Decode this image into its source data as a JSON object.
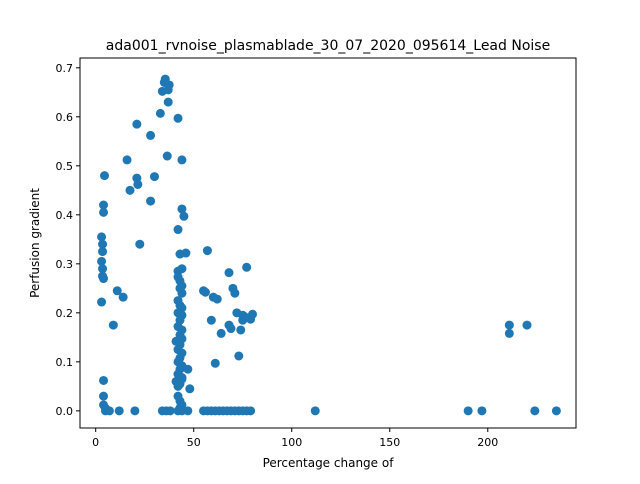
{
  "chart_data": {
    "type": "scatter",
    "title": "ada001_rvnoise_plasmablade_30_07_2020_095614_Lead Noise",
    "xlabel": "Percentage change of",
    "ylabel": "Perfusion gradient",
    "xlim": [
      -8,
      245
    ],
    "ylim": [
      -0.035,
      0.72
    ],
    "xticks": [
      0,
      50,
      100,
      150,
      200
    ],
    "xtick_labels": [
      "0",
      "50",
      "100",
      "150",
      "200"
    ],
    "yticks": [
      0.0,
      0.1,
      0.2,
      0.3,
      0.4,
      0.5,
      0.6,
      0.7
    ],
    "ytick_labels": [
      "0.0",
      "0.1",
      "0.2",
      "0.3",
      "0.4",
      "0.5",
      "0.6",
      "0.7"
    ],
    "grid": false,
    "marker_color": "#1f77b4",
    "series": [
      {
        "points": [
          [
            3,
            0.305
          ],
          [
            3,
            0.355
          ],
          [
            3.5,
            0.34
          ],
          [
            3.5,
            0.325
          ],
          [
            4,
            0.42
          ],
          [
            4,
            0.405
          ],
          [
            4.5,
            0.48
          ],
          [
            3.5,
            0.29
          ],
          [
            3.5,
            0.275
          ],
          [
            4,
            0.27
          ],
          [
            3,
            0.222
          ],
          [
            4,
            0.062
          ],
          [
            4,
            0.03
          ],
          [
            4,
            0.012
          ],
          [
            5,
            0.005
          ],
          [
            5,
            0.0
          ],
          [
            7,
            0.0
          ],
          [
            9,
            0.175
          ],
          [
            11,
            0.245
          ],
          [
            12,
            0.0
          ],
          [
            14,
            0.232
          ],
          [
            16,
            0.512
          ],
          [
            17.5,
            0.45
          ],
          [
            20,
            0.0
          ],
          [
            21,
            0.585
          ],
          [
            21,
            0.475
          ],
          [
            21.5,
            0.462
          ],
          [
            22.5,
            0.34
          ],
          [
            28,
            0.562
          ],
          [
            28,
            0.428
          ],
          [
            30,
            0.478
          ],
          [
            33,
            0.607
          ],
          [
            34,
            0.652
          ],
          [
            35,
            0.67
          ],
          [
            35.5,
            0.677
          ],
          [
            37,
            0.63
          ],
          [
            37,
            0.655
          ],
          [
            37.5,
            0.665
          ],
          [
            36.5,
            0.52
          ],
          [
            34,
            0.0
          ],
          [
            36,
            0.0
          ],
          [
            38,
            0.0
          ],
          [
            42,
            0.597
          ],
          [
            42,
            0.37
          ],
          [
            44,
            0.512
          ],
          [
            44,
            0.412
          ],
          [
            45,
            0.397
          ],
          [
            43,
            0.32
          ],
          [
            46,
            0.322
          ],
          [
            42,
            0.285
          ],
          [
            42,
            0.273
          ],
          [
            43,
            0.265
          ],
          [
            44,
            0.29
          ],
          [
            44,
            0.255
          ],
          [
            43,
            0.25
          ],
          [
            44,
            0.24
          ],
          [
            42,
            0.225
          ],
          [
            43,
            0.215
          ],
          [
            44,
            0.21
          ],
          [
            42,
            0.2
          ],
          [
            44,
            0.195
          ],
          [
            43,
            0.185
          ],
          [
            42,
            0.172
          ],
          [
            44,
            0.165
          ],
          [
            43,
            0.155
          ],
          [
            44,
            0.147
          ],
          [
            41,
            0.142
          ],
          [
            43,
            0.135
          ],
          [
            42,
            0.125
          ],
          [
            44,
            0.118
          ],
          [
            43,
            0.108
          ],
          [
            42,
            0.1
          ],
          [
            44,
            0.092
          ],
          [
            43,
            0.085
          ],
          [
            42,
            0.075
          ],
          [
            44,
            0.068
          ],
          [
            41,
            0.06
          ],
          [
            43,
            0.055
          ],
          [
            42,
            0.05
          ],
          [
            44,
            0.065
          ],
          [
            42,
            0.03
          ],
          [
            43,
            0.02
          ],
          [
            44,
            0.012
          ],
          [
            43,
            0.006
          ],
          [
            47,
            0.0
          ],
          [
            47,
            0.085
          ],
          [
            48,
            0.045
          ],
          [
            42,
            0.0
          ],
          [
            44,
            0.0
          ],
          [
            55,
            0.0
          ],
          [
            57,
            0.0
          ],
          [
            59,
            0.0
          ],
          [
            61,
            0.0
          ],
          [
            63,
            0.0
          ],
          [
            65,
            0.0
          ],
          [
            67,
            0.0
          ],
          [
            69,
            0.0
          ],
          [
            71,
            0.0
          ],
          [
            73,
            0.0
          ],
          [
            75,
            0.0
          ],
          [
            77,
            0.0
          ],
          [
            79,
            0.0
          ],
          [
            55,
            0.245
          ],
          [
            56,
            0.242
          ],
          [
            57,
            0.327
          ],
          [
            59,
            0.185
          ],
          [
            60,
            0.232
          ],
          [
            62,
            0.228
          ],
          [
            61,
            0.097
          ],
          [
            64,
            0.158
          ],
          [
            68,
            0.282
          ],
          [
            68,
            0.175
          ],
          [
            69,
            0.168
          ],
          [
            70,
            0.25
          ],
          [
            71,
            0.24
          ],
          [
            72,
            0.2
          ],
          [
            73,
            0.112
          ],
          [
            74,
            0.165
          ],
          [
            75,
            0.195
          ],
          [
            75,
            0.185
          ],
          [
            76,
            0.192
          ],
          [
            77,
            0.293
          ],
          [
            79,
            0.187
          ],
          [
            80,
            0.197
          ],
          [
            112,
            0.0
          ],
          [
            190,
            0.0
          ],
          [
            197,
            0.0
          ],
          [
            211,
            0.158
          ],
          [
            211,
            0.175
          ],
          [
            220,
            0.175
          ],
          [
            224,
            0.0
          ],
          [
            235,
            0.0
          ]
        ]
      }
    ]
  }
}
